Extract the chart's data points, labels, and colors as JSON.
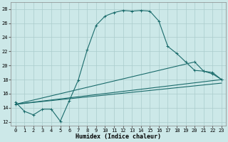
{
  "xlabel": "Humidex (Indice chaleur)",
  "background_color": "#cce8e8",
  "grid_color": "#aacccc",
  "line_color": "#1a6b6b",
  "xlim": [
    -0.5,
    23.5
  ],
  "ylim": [
    11.5,
    29
  ],
  "yticks": [
    12,
    14,
    16,
    18,
    20,
    22,
    24,
    26,
    28
  ],
  "xticks": [
    0,
    1,
    2,
    3,
    4,
    5,
    6,
    7,
    8,
    9,
    10,
    11,
    12,
    13,
    14,
    15,
    16,
    17,
    18,
    19,
    20,
    21,
    22,
    23
  ],
  "series": [
    {
      "x": [
        0,
        1,
        2,
        3,
        4,
        5,
        6,
        7,
        8,
        9,
        10,
        11,
        12,
        13,
        14,
        15,
        16,
        17,
        18,
        19,
        20,
        21,
        22,
        23
      ],
      "y": [
        14.8,
        13.5,
        13.0,
        13.8,
        13.8,
        12.1,
        15.0,
        17.9,
        22.2,
        25.7,
        27.0,
        27.5,
        27.8,
        27.7,
        27.8,
        27.7,
        26.3,
        22.7,
        21.7,
        20.5,
        19.3,
        19.2,
        19.0,
        18.0
      ],
      "markers": true
    },
    {
      "x": [
        0,
        23
      ],
      "y": [
        14.5,
        18.0
      ],
      "markers": false
    },
    {
      "x": [
        0,
        20,
        21,
        22,
        23
      ],
      "y": [
        14.5,
        20.5,
        19.2,
        18.8,
        18.0
      ],
      "markers": true
    },
    {
      "x": [
        0,
        23
      ],
      "y": [
        14.5,
        17.5
      ],
      "markers": false
    }
  ]
}
